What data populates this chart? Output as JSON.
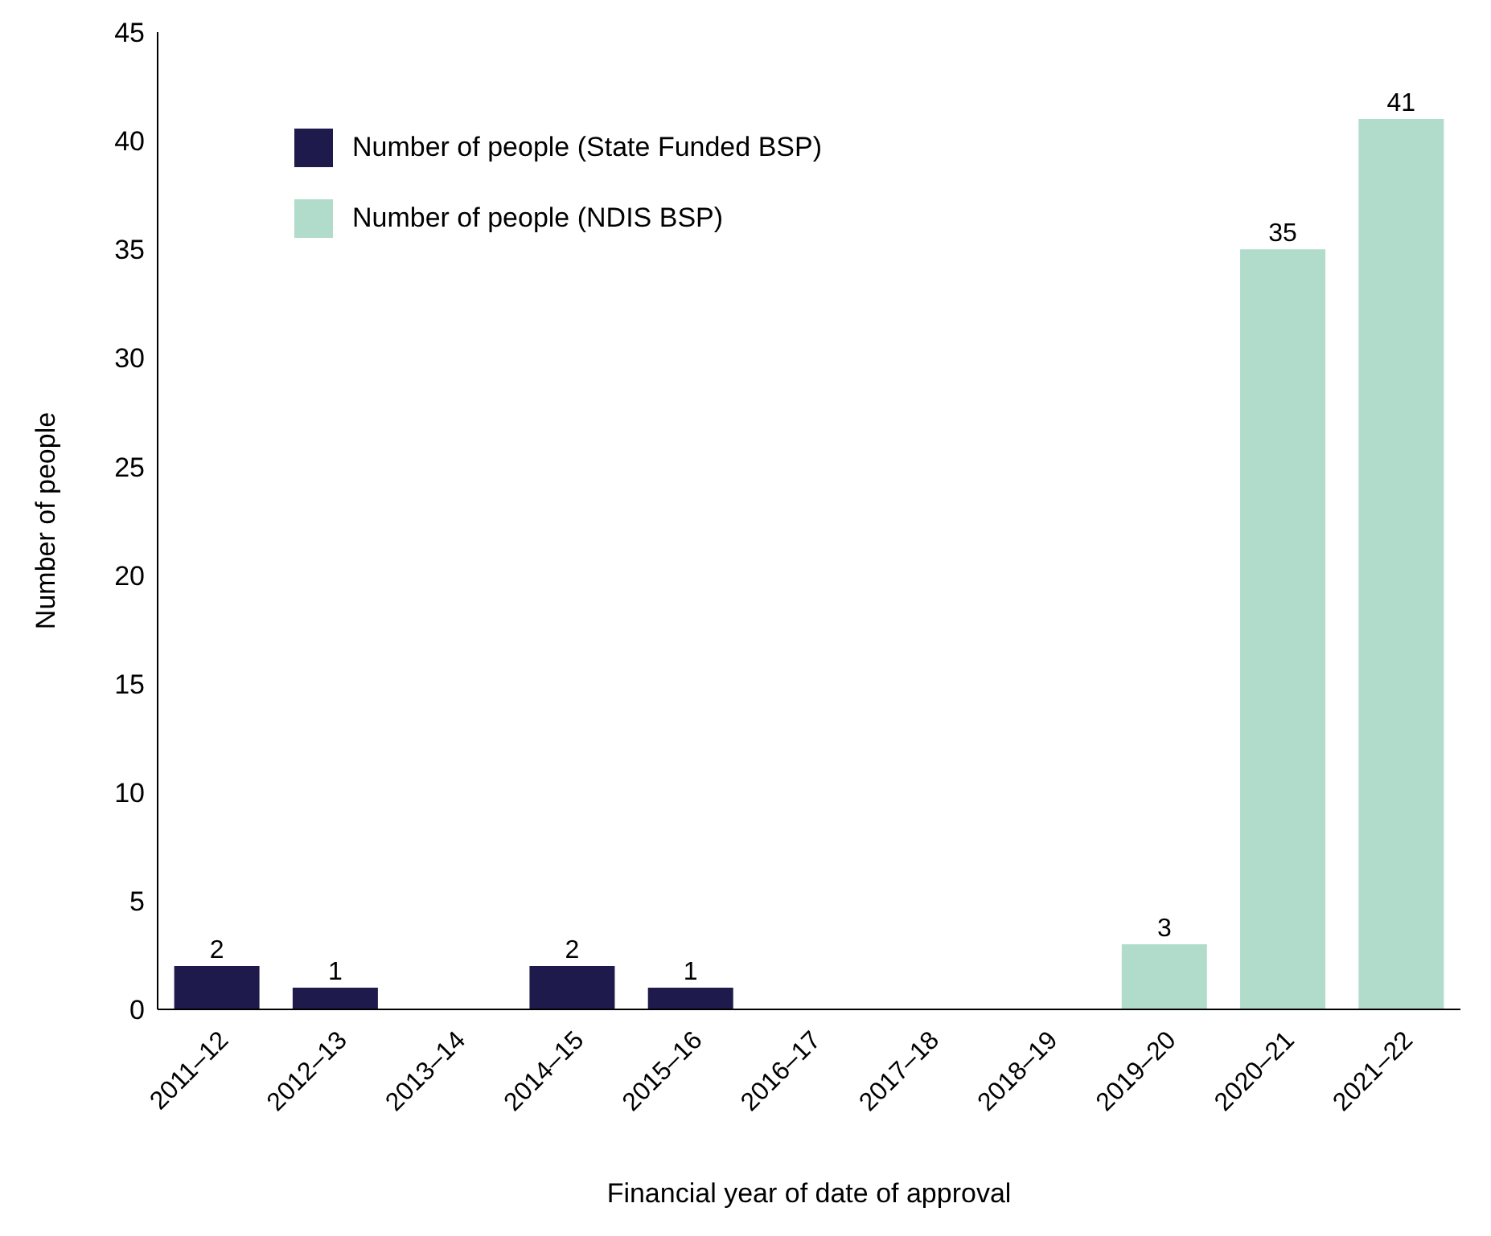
{
  "chart_data": {
    "type": "bar",
    "stacked": true,
    "xlabel": "Financial year of date of approval",
    "ylabel": "Number of people",
    "categories": [
      "2011–12",
      "2012–13",
      "2013–14",
      "2014–15",
      "2015–16",
      "2016–17",
      "2017–18",
      "2018–19",
      "2019–20",
      "2020–21",
      "2021–22"
    ],
    "series": [
      {
        "name": "Number of people (State Funded BSP)",
        "color": "#1e1a4b",
        "values": [
          2,
          1,
          null,
          2,
          1,
          null,
          null,
          null,
          null,
          null,
          null
        ]
      },
      {
        "name": "Number of people (NDIS BSP)",
        "color": "#b1dccc",
        "values": [
          null,
          null,
          null,
          null,
          null,
          null,
          null,
          null,
          3,
          35,
          41
        ]
      }
    ],
    "ylim": [
      0,
      45
    ],
    "yticks": [
      0,
      5,
      10,
      15,
      20,
      25,
      30,
      35,
      40,
      45
    ],
    "grid": false,
    "legend": "top left",
    "data_labels": true
  }
}
